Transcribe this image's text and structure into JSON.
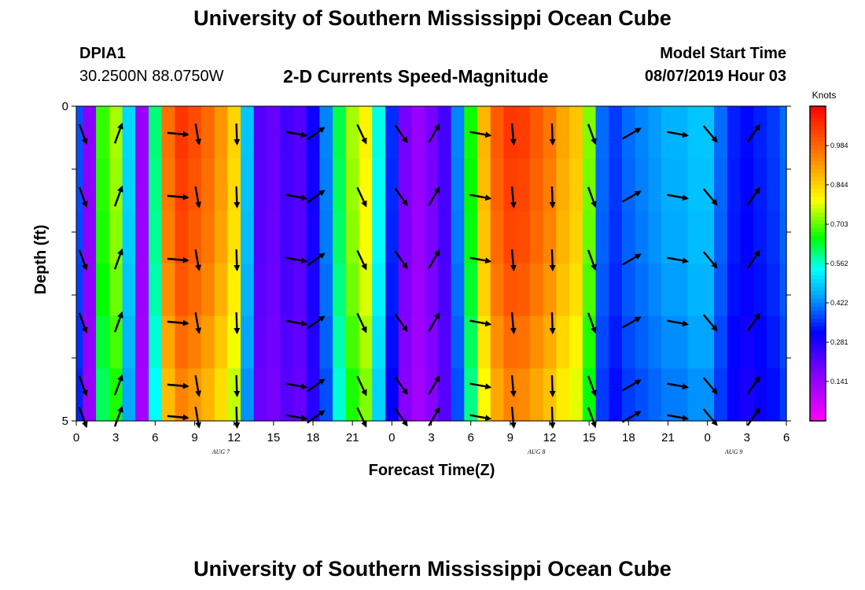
{
  "header": {
    "title": "University of Southern Mississippi Ocean Cube",
    "station_id": "DPIA1",
    "station_coords": "30.2500N 88.0750W",
    "chart_title": "2-D Currents Speed-Magnitude",
    "model_start_label": "Model Start Time",
    "model_start_value": "08/07/2019 Hour 03"
  },
  "footer": {
    "title": "University of Southern Mississippi Ocean Cube"
  },
  "chart_data": {
    "type": "heatmap",
    "title": "2-D Currents Speed-Magnitude",
    "xlabel": "Forecast Time(Z)",
    "ylabel": "Depth (ft)",
    "xlim": [
      0,
      54
    ],
    "ylim": [
      0,
      5
    ],
    "x_tick_labels": [
      "0",
      "3",
      "6",
      "9",
      "12",
      "15",
      "18",
      "21",
      "0",
      "3",
      "6",
      "9",
      "12",
      "15",
      "18",
      "21",
      "0",
      "3",
      "6"
    ],
    "y_tick_labels": [
      "0",
      "5"
    ],
    "date_labels": [
      {
        "hour": 11,
        "text": "AUG 7"
      },
      {
        "hour": 35,
        "text": "AUG 8"
      },
      {
        "hour": 50,
        "text": "AUG 9"
      }
    ],
    "colorbar": {
      "label": "Knots",
      "ticks": [
        "0.984",
        "0.844",
        "0.703",
        "0.562",
        "0.422",
        "0.281",
        "0.141"
      ],
      "tick_values": [
        0.984,
        0.844,
        0.703,
        0.562,
        0.422,
        0.281,
        0.141
      ],
      "range": [
        0.0,
        1.125
      ]
    },
    "depth_bins": [
      0.5,
      1.5,
      2.5,
      3.5,
      4.5
    ],
    "hourly_surface_speed": [
      0.38,
      0.16,
      0.68,
      0.74,
      0.5,
      0.14,
      0.6,
      0.97,
      1.05,
      1.02,
      0.98,
      0.92,
      0.84,
      0.48,
      0.22,
      0.2,
      0.24,
      0.22,
      0.3,
      0.42,
      0.62,
      0.74,
      0.8,
      0.55,
      0.35,
      0.18,
      0.14,
      0.18,
      0.24,
      0.42,
      0.66,
      0.88,
      1.0,
      1.05,
      1.04,
      1.0,
      0.96,
      0.9,
      0.86,
      0.72,
      0.4,
      0.36,
      0.4,
      0.42,
      0.44,
      0.46,
      0.46,
      0.48,
      0.48,
      0.4,
      0.34,
      0.32,
      0.34,
      0.36,
      0.4
    ],
    "depth_factors": [
      1.0,
      0.99,
      0.98,
      0.96,
      0.93,
      0.9
    ],
    "vector_times": [
      0.5,
      3.2,
      7.7,
      9.2,
      12.2,
      16.7,
      18.2,
      21.7,
      24.7,
      27.2,
      30.7,
      33.2,
      36.2,
      39.2,
      42.2,
      45.7,
      48.2,
      51.5
    ],
    "vector_directions_deg": [
      160,
      20,
      95,
      170,
      178,
      100,
      55,
      155,
      145,
      30,
      100,
      175,
      178,
      160,
      60,
      100,
      140,
      35
    ]
  }
}
